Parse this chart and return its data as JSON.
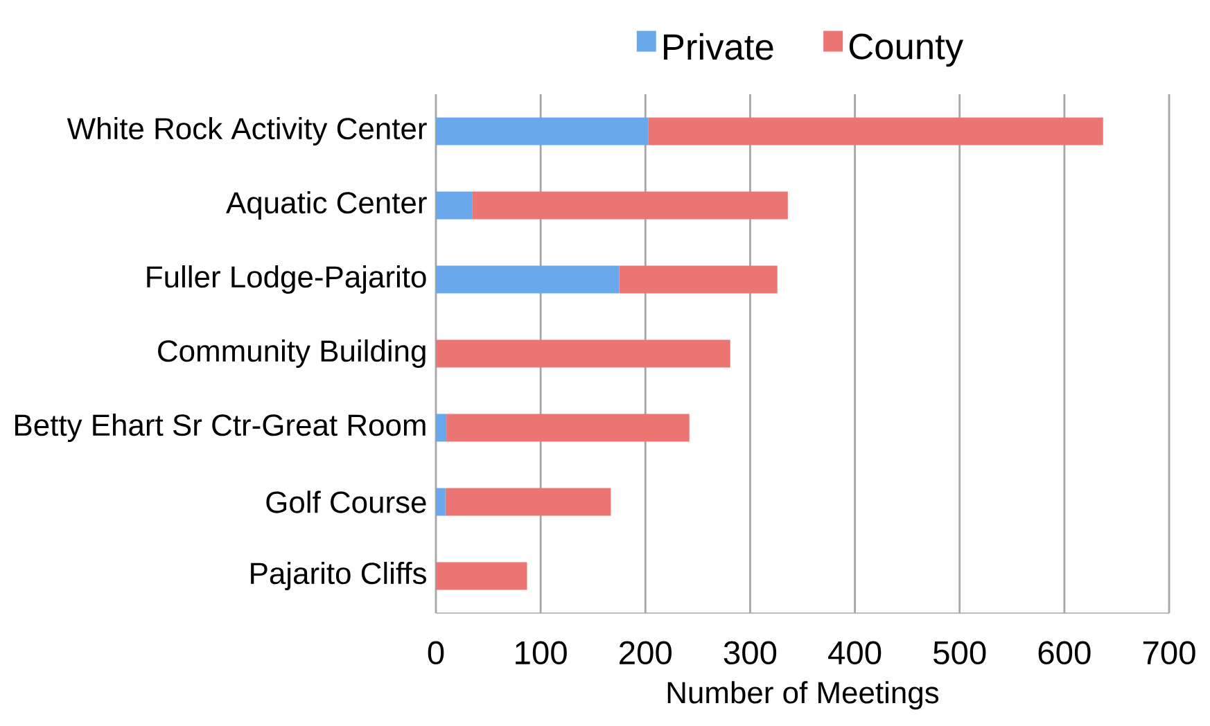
{
  "chart_data": {
    "type": "bar",
    "orientation": "horizontal",
    "stacked": true,
    "xlabel": "Number of Meetings",
    "categories": [
      "White Rock Activity Center",
      "Aquatic Center",
      "Fuller Lodge-Pajarito",
      "Community Building",
      "Betty Ehart Sr Ctr-Great Room",
      "Golf Course",
      "Pajarito Cliffs"
    ],
    "series": [
      {
        "name": "Private",
        "color": "#6aa8ec",
        "values": [
          203,
          35,
          175,
          0,
          10,
          9,
          0
        ]
      },
      {
        "name": "County",
        "color": "#ec7674",
        "values": [
          434,
          301,
          151,
          281,
          232,
          158,
          87
        ]
      }
    ],
    "xlim": [
      0,
      700
    ],
    "xticks": [
      0,
      100,
      200,
      300,
      400,
      500,
      600,
      700
    ],
    "grid": "x",
    "legend": "top"
  }
}
